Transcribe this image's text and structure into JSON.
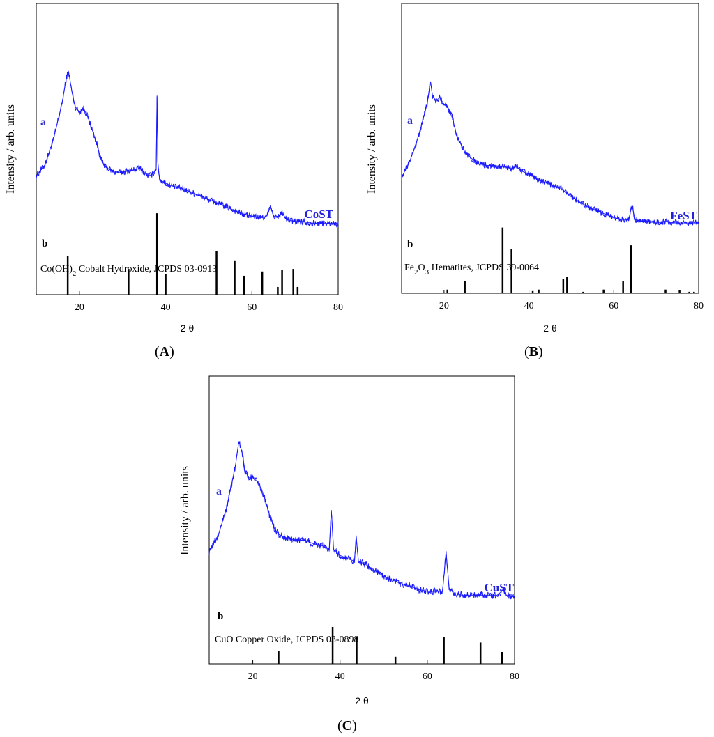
{
  "chart_data": [
    {
      "type": "line",
      "panel_label": "A",
      "ylabel": "Intensity / arb. units",
      "xlabel": "2 θ",
      "xlim": [
        10,
        80
      ],
      "xticks": [
        20,
        40,
        60,
        80
      ],
      "curve_label": "a",
      "sample_name": "CoST",
      "reference_label": "b",
      "reference_text": "Co(OH)2 Cobalt Hydroxide, JCPDS 03-0913",
      "reference_formula_parts": [
        [
          "Co(OH)",
          false
        ],
        [
          "2",
          true
        ],
        [
          " Cobalt Hydroxide, JCPDS 03-0913",
          false
        ]
      ],
      "line_color": "#1a1aff",
      "series": [
        {
          "name": "CoST",
          "x": [
            10,
            12,
            14,
            16,
            17,
            17.5,
            18.2,
            19,
            20,
            21,
            22,
            23,
            24,
            25,
            26,
            28,
            30,
            32,
            34,
            35,
            36,
            37,
            37.8,
            38.0,
            38.2,
            38.6,
            40,
            42,
            44,
            46,
            48,
            50,
            52,
            54,
            56,
            58,
            60,
            62,
            63.5,
            64.3,
            65,
            66,
            67,
            68,
            70,
            72,
            74,
            76,
            78,
            80
          ],
          "y": [
            0.38,
            0.44,
            0.58,
            0.78,
            0.92,
            0.95,
            0.85,
            0.76,
            0.73,
            0.75,
            0.7,
            0.63,
            0.56,
            0.47,
            0.43,
            0.4,
            0.4,
            0.41,
            0.42,
            0.4,
            0.38,
            0.39,
            0.42,
            0.82,
            0.45,
            0.36,
            0.34,
            0.32,
            0.31,
            0.29,
            0.27,
            0.25,
            0.23,
            0.21,
            0.19,
            0.17,
            0.16,
            0.15,
            0.16,
            0.21,
            0.16,
            0.15,
            0.18,
            0.14,
            0.13,
            0.13,
            0.12,
            0.12,
            0.12,
            0.12
          ]
        },
        {
          "name": "",
          "x": [
            17.3,
            31.4,
            38.0,
            40.0,
            51.8,
            56.0,
            58.2,
            62.4,
            66.0,
            67.0,
            69.6,
            70.6
          ],
          "y": [
            0.45,
            0.3,
            0.95,
            0.24,
            0.51,
            0.4,
            0.22,
            0.27,
            0.09,
            0.29,
            0.3,
            0.09
          ]
        }
      ]
    },
    {
      "type": "line",
      "panel_label": "B",
      "ylabel": "Intensity / arb. units",
      "xlabel": "2 θ",
      "xlim": [
        10,
        80
      ],
      "xticks": [
        20,
        40,
        60,
        80
      ],
      "curve_label": "a",
      "sample_name": "FeST",
      "reference_label": "b",
      "reference_text": "Fe2O3 Hematites, JCPDS 39-0064",
      "reference_formula_parts": [
        [
          "Fe",
          false
        ],
        [
          "2",
          true
        ],
        [
          "O",
          false
        ],
        [
          "3",
          true
        ],
        [
          " Hematites, JCPDS 39-0064",
          false
        ]
      ],
      "line_color": "#1a1aff",
      "series": [
        {
          "name": "FeST",
          "x": [
            10,
            12,
            14,
            16,
            16.8,
            17.3,
            18,
            19,
            20,
            21,
            22,
            23,
            24,
            25,
            26,
            28,
            30,
            32,
            34,
            35,
            36,
            37,
            38,
            40,
            42,
            44,
            46,
            48,
            50,
            52,
            54,
            56,
            58,
            60,
            62,
            63.5,
            64.3,
            65,
            66,
            68,
            70,
            72,
            74,
            76,
            78,
            80
          ],
          "y": [
            0.38,
            0.48,
            0.62,
            0.8,
            0.93,
            0.85,
            0.82,
            0.84,
            0.8,
            0.78,
            0.72,
            0.62,
            0.57,
            0.52,
            0.5,
            0.46,
            0.45,
            0.45,
            0.44,
            0.44,
            0.43,
            0.45,
            0.42,
            0.4,
            0.37,
            0.35,
            0.33,
            0.31,
            0.27,
            0.24,
            0.21,
            0.19,
            0.17,
            0.15,
            0.14,
            0.14,
            0.22,
            0.14,
            0.13,
            0.13,
            0.12,
            0.13,
            0.12,
            0.12,
            0.12,
            0.12
          ]
        },
        {
          "name": "",
          "x": [
            20.8,
            24.9,
            33.8,
            35.9,
            40.9,
            42.3,
            48.1,
            49.0,
            52.8,
            57.6,
            62.2,
            64.1,
            72.2,
            75.5,
            77.8,
            78.9
          ],
          "y": [
            0.05,
            0.17,
            0.89,
            0.6,
            0.03,
            0.05,
            0.19,
            0.22,
            0.02,
            0.05,
            0.16,
            0.65,
            0.05,
            0.04,
            0.02,
            0.02
          ]
        }
      ]
    },
    {
      "type": "line",
      "panel_label": "C",
      "ylabel": "Intensity / arb. units",
      "xlabel": "2 θ",
      "xlim": [
        10,
        80
      ],
      "xticks": [
        20,
        40,
        60,
        80
      ],
      "curve_label": "a",
      "sample_name": "CuST",
      "reference_label": "b",
      "reference_text": "CuO Copper Oxide, JCPDS 03-0898",
      "reference_formula_parts": [
        [
          "CuO Copper Oxide, JCPDS 03-0898",
          false
        ]
      ],
      "line_color": "#1a1aff",
      "series": [
        {
          "name": "CuST",
          "x": [
            10,
            12,
            14,
            16,
            16.8,
            17.5,
            18.2,
            19,
            20,
            21,
            22,
            23,
            24,
            25,
            26,
            28,
            30,
            32,
            34,
            36,
            37.5,
            38.0,
            38.5,
            40,
            42,
            43.3,
            43.7,
            44.2,
            46,
            48,
            50,
            52,
            54,
            56,
            58,
            60,
            62,
            63.5,
            64.3,
            65,
            66,
            68,
            70,
            72,
            74,
            76,
            77.5,
            78,
            80
          ],
          "y": [
            0.35,
            0.43,
            0.58,
            0.8,
            0.93,
            0.88,
            0.78,
            0.74,
            0.74,
            0.72,
            0.68,
            0.61,
            0.53,
            0.47,
            0.44,
            0.42,
            0.41,
            0.41,
            0.39,
            0.38,
            0.36,
            0.57,
            0.36,
            0.33,
            0.31,
            0.3,
            0.43,
            0.3,
            0.28,
            0.25,
            0.22,
            0.2,
            0.18,
            0.17,
            0.15,
            0.14,
            0.14,
            0.14,
            0.35,
            0.16,
            0.13,
            0.12,
            0.12,
            0.12,
            0.12,
            0.12,
            0.15,
            0.12,
            0.11
          ]
        },
        {
          "name": "",
          "x": [
            25.9,
            38.3,
            43.8,
            52.7,
            63.8,
            72.2,
            77.1
          ],
          "y": [
            0.27,
            0.78,
            0.56,
            0.15,
            0.56,
            0.45,
            0.25
          ]
        }
      ]
    }
  ]
}
